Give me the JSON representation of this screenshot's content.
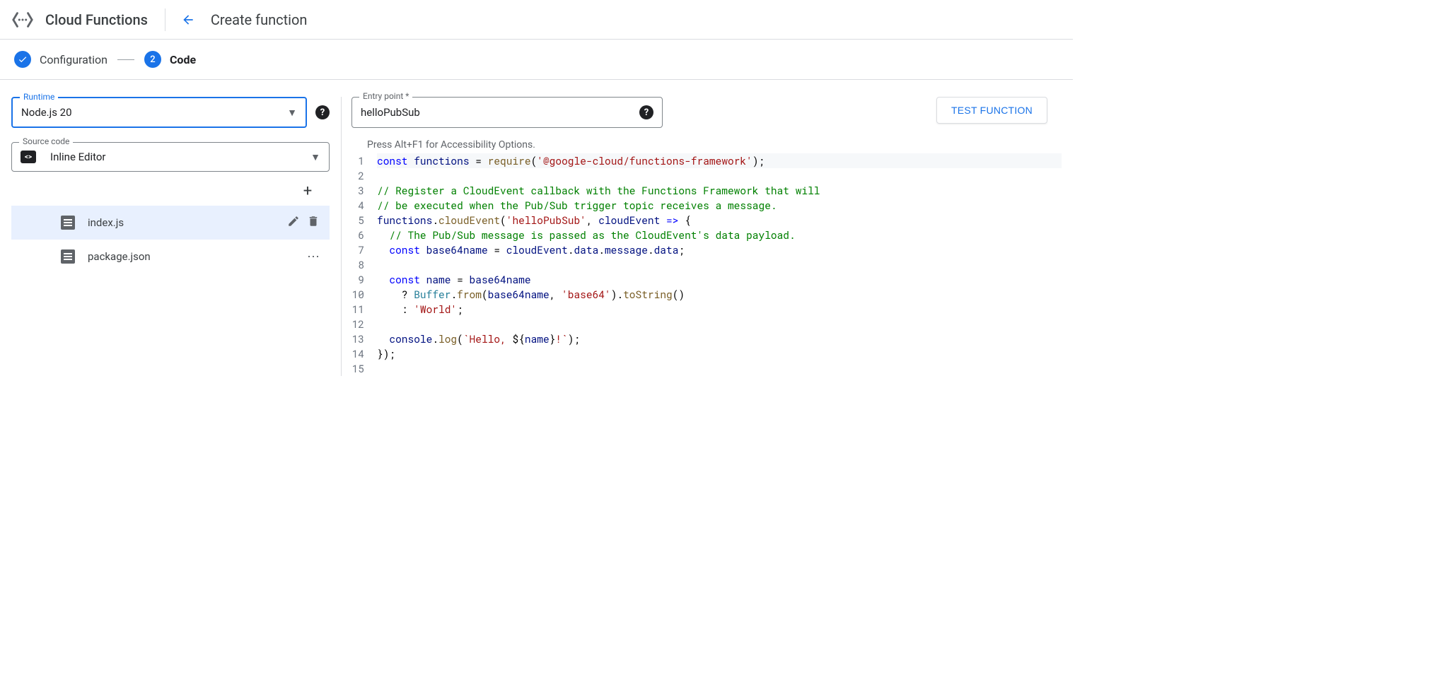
{
  "header": {
    "product_title": "Cloud Functions",
    "page_title": "Create function"
  },
  "stepper": {
    "step1_label": "Configuration",
    "step2_number": "2",
    "step2_label": "Code"
  },
  "runtime": {
    "label": "Runtime",
    "value": "Node.js 20"
  },
  "source_code": {
    "label": "Source code",
    "value": "Inline Editor"
  },
  "files": [
    {
      "name": "index.js",
      "selected": true
    },
    {
      "name": "package.json",
      "selected": false
    }
  ],
  "entry_point": {
    "label": "Entry point *",
    "value": "helloPubSub"
  },
  "test_button": "TEST FUNCTION",
  "a11y_hint": "Press Alt+F1 for Accessibility Options.",
  "code_lines": [
    {
      "n": 1,
      "tokens": [
        [
          "kw",
          "const"
        ],
        [
          "op",
          " "
        ],
        [
          "id",
          "functions"
        ],
        [
          "op",
          " = "
        ],
        [
          "fn",
          "require"
        ],
        [
          "op",
          "("
        ],
        [
          "str",
          "'@google-cloud/functions-framework'"
        ],
        [
          "op",
          ");"
        ]
      ]
    },
    {
      "n": 2,
      "tokens": []
    },
    {
      "n": 3,
      "tokens": [
        [
          "com",
          "// Register a CloudEvent callback with the Functions Framework that will"
        ]
      ]
    },
    {
      "n": 4,
      "tokens": [
        [
          "com",
          "// be executed when the Pub/Sub trigger topic receives a message."
        ]
      ]
    },
    {
      "n": 5,
      "tokens": [
        [
          "id",
          "functions"
        ],
        [
          "op",
          "."
        ],
        [
          "fn",
          "cloudEvent"
        ],
        [
          "op",
          "("
        ],
        [
          "str",
          "'helloPubSub'"
        ],
        [
          "op",
          ", "
        ],
        [
          "id",
          "cloudEvent"
        ],
        [
          "op",
          " "
        ],
        [
          "kw",
          "=>"
        ],
        [
          "op",
          " {"
        ]
      ]
    },
    {
      "n": 6,
      "tokens": [
        [
          "op",
          "  "
        ],
        [
          "com",
          "// The Pub/Sub message is passed as the CloudEvent's data payload."
        ]
      ]
    },
    {
      "n": 7,
      "tokens": [
        [
          "op",
          "  "
        ],
        [
          "kw",
          "const"
        ],
        [
          "op",
          " "
        ],
        [
          "id",
          "base64name"
        ],
        [
          "op",
          " = "
        ],
        [
          "id",
          "cloudEvent"
        ],
        [
          "op",
          "."
        ],
        [
          "id",
          "data"
        ],
        [
          "op",
          "."
        ],
        [
          "id",
          "message"
        ],
        [
          "op",
          "."
        ],
        [
          "id",
          "data"
        ],
        [
          "op",
          ";"
        ]
      ]
    },
    {
      "n": 8,
      "tokens": []
    },
    {
      "n": 9,
      "tokens": [
        [
          "op",
          "  "
        ],
        [
          "kw",
          "const"
        ],
        [
          "op",
          " "
        ],
        [
          "id",
          "name"
        ],
        [
          "op",
          " = "
        ],
        [
          "id",
          "base64name"
        ]
      ]
    },
    {
      "n": 10,
      "tokens": [
        [
          "op",
          "    ? "
        ],
        [
          "type",
          "Buffer"
        ],
        [
          "op",
          "."
        ],
        [
          "fn",
          "from"
        ],
        [
          "op",
          "("
        ],
        [
          "id",
          "base64name"
        ],
        [
          "op",
          ", "
        ],
        [
          "str",
          "'base64'"
        ],
        [
          "op",
          ")."
        ],
        [
          "fn",
          "toString"
        ],
        [
          "op",
          "()"
        ]
      ]
    },
    {
      "n": 11,
      "tokens": [
        [
          "op",
          "    : "
        ],
        [
          "str",
          "'World'"
        ],
        [
          "op",
          ";"
        ]
      ]
    },
    {
      "n": 12,
      "tokens": []
    },
    {
      "n": 13,
      "tokens": [
        [
          "op",
          "  "
        ],
        [
          "id",
          "console"
        ],
        [
          "op",
          "."
        ],
        [
          "fn",
          "log"
        ],
        [
          "op",
          "("
        ],
        [
          "str",
          "`Hello, "
        ],
        [
          "op",
          "${"
        ],
        [
          "id",
          "name"
        ],
        [
          "op",
          "}"
        ],
        [
          "str",
          "!`"
        ],
        [
          "op",
          ");"
        ]
      ]
    },
    {
      "n": 14,
      "tokens": [
        [
          "op",
          "});"
        ]
      ]
    },
    {
      "n": 15,
      "tokens": []
    }
  ],
  "colors": {
    "primary": "#1a73e8",
    "border": "#dadce0",
    "text": "#202124",
    "text_secondary": "#5f6368",
    "selected_bg": "#e8f0fe"
  }
}
